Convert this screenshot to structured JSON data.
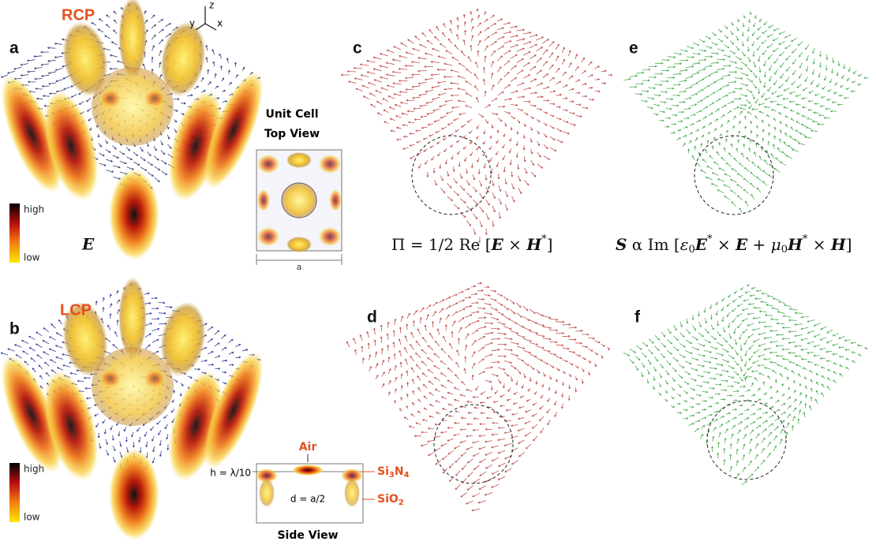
{
  "panel_labels": [
    "a",
    "b",
    "c",
    "d",
    "e",
    "f"
  ],
  "polarization": {
    "rcp": "RCP",
    "lcp": "LCP"
  },
  "axes": {
    "z": "z",
    "y": "y",
    "x": "x"
  },
  "colorbar": {
    "high": "high",
    "low": "low"
  },
  "field_label": "E",
  "unit_cell": {
    "title": [
      "Unit Cell",
      "Top View"
    ],
    "period": "a"
  },
  "side_view": {
    "air": "Air",
    "height": "h = λ/10",
    "spacing": "d = a/2",
    "layer": [
      "Si",
      "3",
      "N",
      "4"
    ],
    "substrate": [
      "SiO",
      "2"
    ],
    "title": "Side View"
  },
  "equations": {
    "poynting": [
      "Π = 1/2  Re [",
      "E",
      " × ",
      "H",
      "*",
      "]"
    ],
    "spin": [
      "S",
      "  α  Im [",
      "ε",
      "0",
      "E",
      "*",
      " × ",
      "E",
      "  + ",
      "μ",
      "0",
      "H",
      "*",
      " × ",
      "H",
      "]"
    ]
  }
}
